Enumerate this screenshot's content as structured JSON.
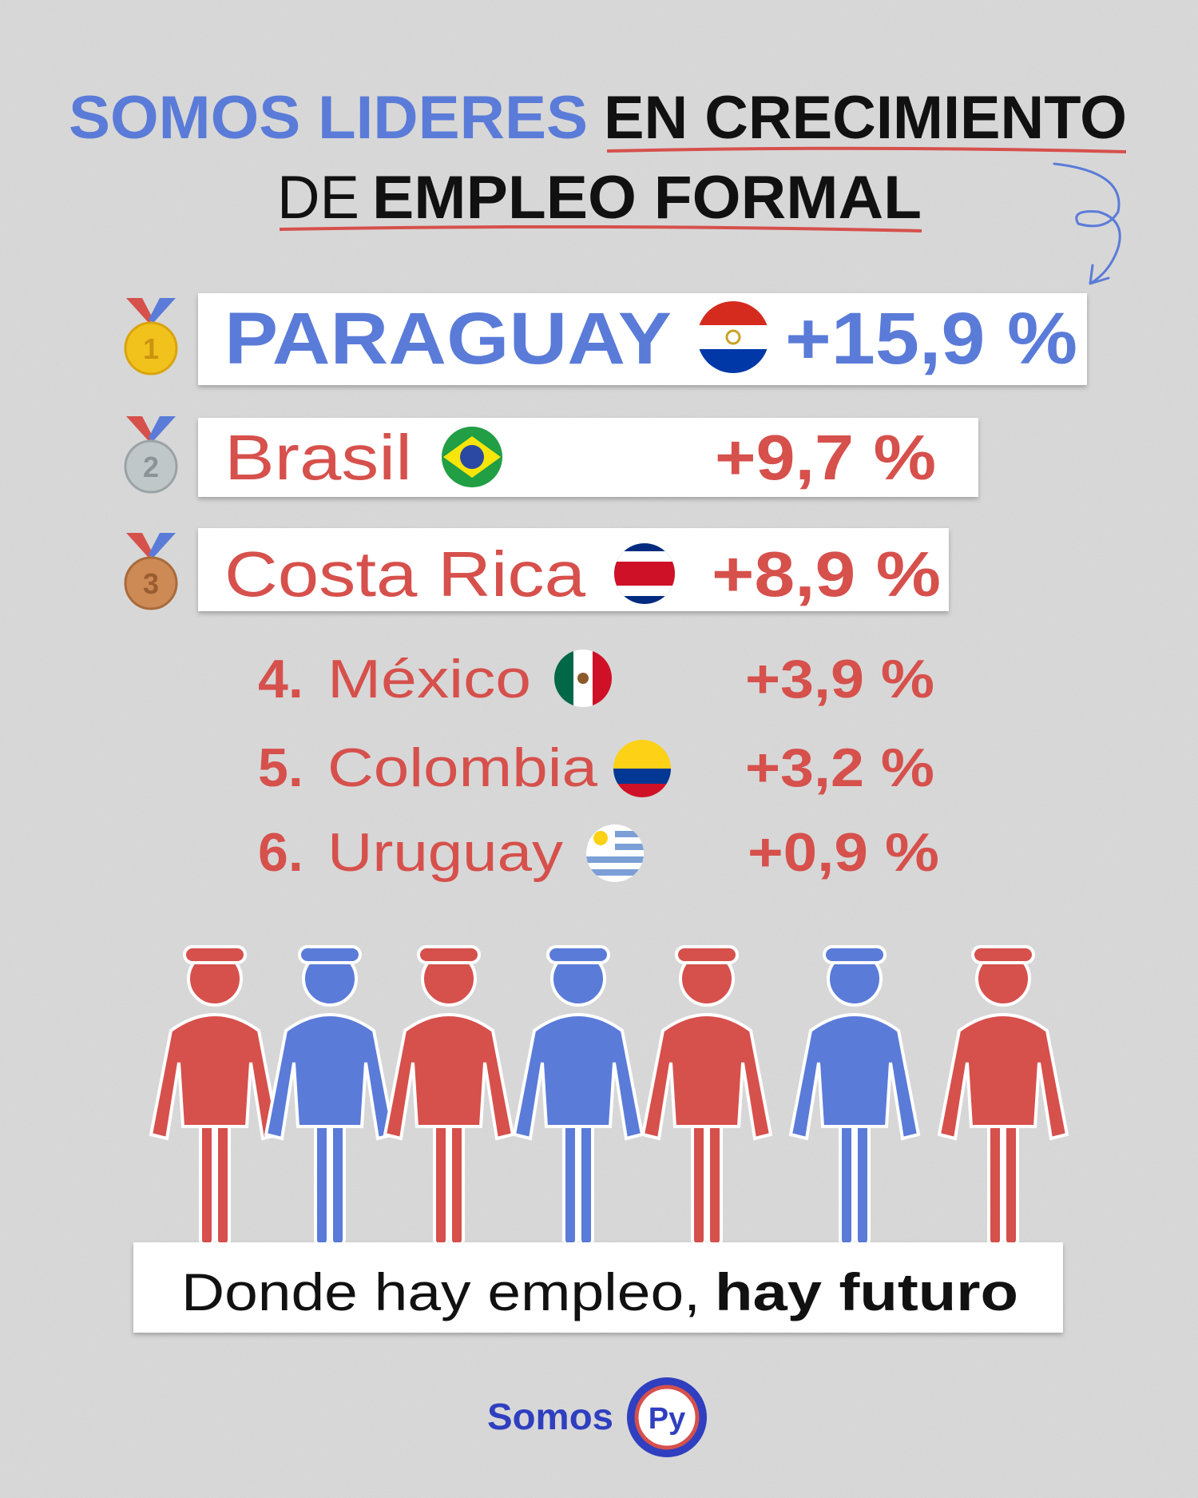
{
  "header": {
    "title_line1_highlight": "SOMOS LIDERES",
    "title_line1_rest": "EN CRECIMIENTO",
    "title_line2_start": "DE",
    "title_line2_emphasis": "EMPLEO FORMAL"
  },
  "ranking": [
    {
      "rank": "1",
      "country": "PARAGUAY",
      "growth": "+15,9 %"
    },
    {
      "rank": "2",
      "country": "Brasil",
      "growth": "+9,7 %"
    },
    {
      "rank": "3",
      "country": "Costa Rica",
      "growth": "+8,9 %"
    },
    {
      "rank": "4.",
      "country": "México",
      "growth": "+3,9 %"
    },
    {
      "rank": "5.",
      "country": "Colombia",
      "growth": "+3,2 %"
    },
    {
      "rank": "6.",
      "country": "Uruguay",
      "growth": "+0,9 %"
    }
  ],
  "slogan": {
    "start": "Donde hay empleo,",
    "emphasis": "hay futuro"
  },
  "footer": {
    "brand": "Somos",
    "badge": "Py"
  }
}
